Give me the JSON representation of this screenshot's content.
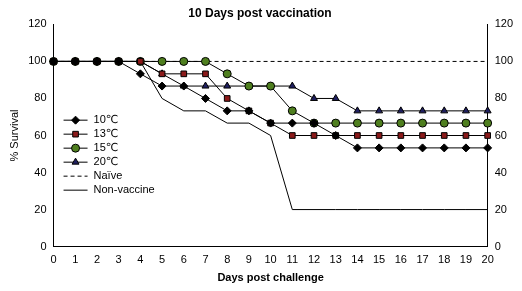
{
  "chart_data": {
    "type": "line",
    "title": "10 Days post vaccination",
    "x_label": "Days post challenge",
    "x": [
      0,
      1,
      2,
      3,
      4,
      5,
      6,
      7,
      8,
      9,
      10,
      11,
      12,
      13,
      14,
      15,
      16,
      17,
      18,
      19,
      20
    ],
    "series": [
      {
        "name": "10℃",
        "color": "#000000",
        "marker": "diamond",
        "line_style": "solid",
        "values": [
          100,
          100,
          100,
          100,
          93.3,
          86.7,
          86.7,
          80,
          73.3,
          73.3,
          66.7,
          66.7,
          66.7,
          60,
          53.3,
          53.3,
          53.3,
          53.3,
          53.3,
          53.3,
          53.3
        ]
      },
      {
        "name": "13℃",
        "color": "#8b1a1a",
        "marker": "square",
        "line_style": "solid",
        "values": [
          100,
          100,
          100,
          100,
          100,
          93.3,
          93.3,
          93.3,
          80,
          73.3,
          66.7,
          60,
          60,
          60,
          60,
          60,
          60,
          60,
          60,
          60,
          60
        ]
      },
      {
        "name": "15℃",
        "color": "#4f7f1f",
        "marker": "circle",
        "line_style": "solid",
        "values": [
          100,
          100,
          100,
          100,
          100,
          100,
          100,
          100,
          93.3,
          86.7,
          86.7,
          73.3,
          66.7,
          66.7,
          66.7,
          66.7,
          66.7,
          66.7,
          66.7,
          66.7,
          66.7
        ]
      },
      {
        "name": "20℃",
        "color": "#1f1f5f",
        "marker": "triangle",
        "line_style": "solid",
        "values": [
          100,
          100,
          100,
          100,
          100,
          93.3,
          86.7,
          86.7,
          86.7,
          86.7,
          86.7,
          86.7,
          80,
          80,
          73.3,
          73.3,
          73.3,
          73.3,
          73.3,
          73.3,
          73.3
        ]
      },
      {
        "name": "Naïve",
        "color": "#000000",
        "marker": "none",
        "line_style": "dashed",
        "values": [
          100,
          100,
          100,
          100,
          100,
          100,
          100,
          100,
          100,
          100,
          100,
          100,
          100,
          100,
          100,
          100,
          100,
          100,
          100,
          100,
          100
        ]
      },
      {
        "name": "Non-vaccine",
        "color": "#000000",
        "marker": "none",
        "line_style": "solid",
        "values": [
          100,
          100,
          100,
          100,
          100,
          80,
          73.3,
          73.3,
          66.7,
          66.7,
          60,
          20,
          20,
          20,
          20,
          20,
          20,
          20,
          20,
          20,
          20
        ]
      }
    ],
    "y_label": "% Survival",
    "xlim": [
      0,
      20
    ],
    "xticks": [
      0,
      1,
      2,
      3,
      4,
      5,
      6,
      7,
      8,
      9,
      10,
      11,
      12,
      13,
      14,
      15,
      16,
      17,
      18,
      19,
      20
    ],
    "ylim": [
      0,
      120
    ],
    "yticks": [
      0,
      20,
      40,
      60,
      80,
      100,
      120
    ],
    "y2lim": [
      0,
      120
    ],
    "y2ticks": [
      0,
      20,
      40,
      60,
      80,
      100,
      120
    ],
    "grid": false,
    "legend": "left"
  }
}
